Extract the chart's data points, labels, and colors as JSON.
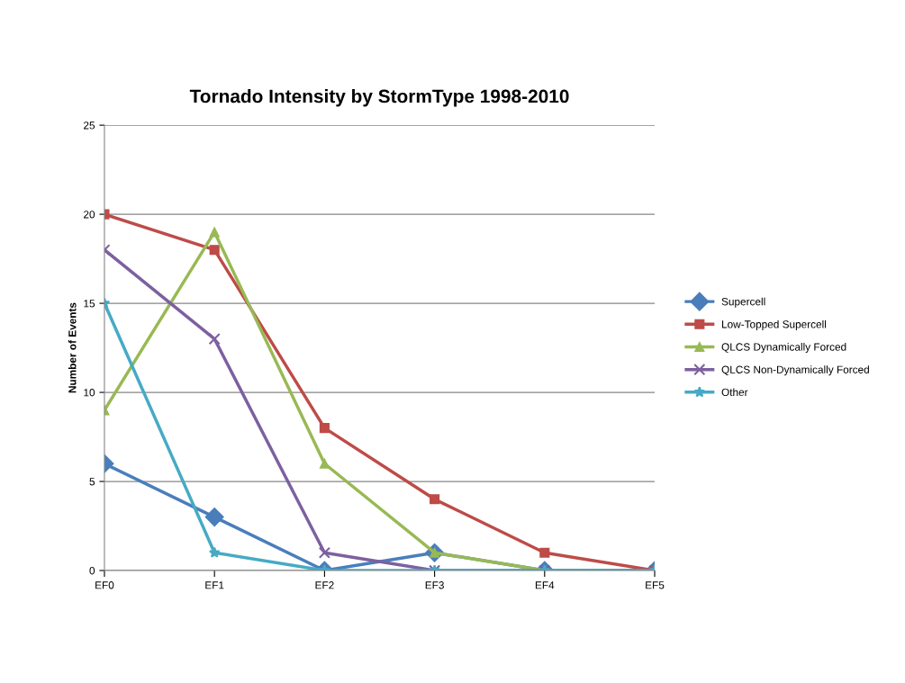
{
  "chart_data": {
    "type": "line",
    "title": "Tornado Intensity by StormType 1998-2010",
    "ylabel": "Number of Events",
    "categories": [
      "EF0",
      "EF1",
      "EF2",
      "EF3",
      "EF4",
      "EF5"
    ],
    "series": [
      {
        "name": "Supercell",
        "color": "#4a7ebb",
        "marker": "diamond",
        "values": [
          6,
          3,
          0,
          1,
          0,
          0
        ]
      },
      {
        "name": "Low-Topped Supercell",
        "color": "#be4b48",
        "marker": "square",
        "values": [
          20,
          18,
          8,
          4,
          1,
          0
        ]
      },
      {
        "name": "QLCS Dynamically Forced",
        "color": "#98b954",
        "marker": "triangle",
        "values": [
          9,
          19,
          6,
          1,
          0,
          0
        ]
      },
      {
        "name": "QLCS Non-Dynamically Forced",
        "color": "#7d60a0",
        "marker": "cross",
        "values": [
          18,
          13,
          1,
          0,
          0,
          0
        ]
      },
      {
        "name": "Other",
        "color": "#46aac5",
        "marker": "star",
        "values": [
          15,
          1,
          0,
          0,
          0,
          0
        ]
      }
    ],
    "ylim": [
      0,
      25
    ],
    "yticks": [
      0,
      5,
      10,
      15,
      20,
      25
    ],
    "grid": "y",
    "legend": "right",
    "line_style": "solid"
  }
}
